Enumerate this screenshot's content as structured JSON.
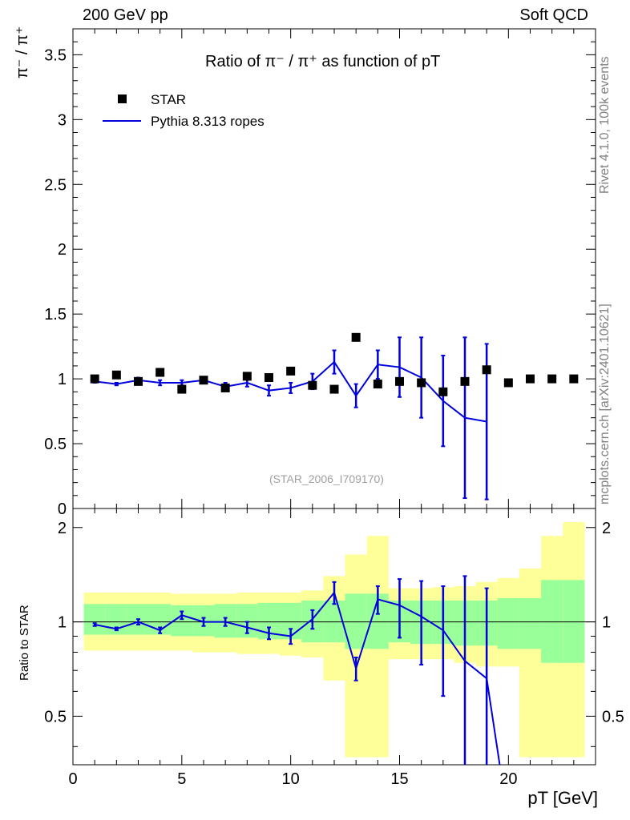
{
  "header": {
    "left": "200 GeV pp",
    "right": "Soft QCD"
  },
  "side_labels": {
    "rivet": "Rivet 4.1.0,  100k events",
    "mcplots": "mcplots.cern.ch [arXiv:2401.10621]"
  },
  "colors": {
    "data": "#000000",
    "mc": "#0000dd",
    "band_inner": "#99ff99",
    "band_outer": "#ffff99"
  },
  "chart_data": [
    {
      "id": "main",
      "type": "scatter",
      "title": "Ratio of π⁻ / π⁺ as function of pT",
      "ylabel": "π⁻ / π⁺",
      "xlabel": "pT [GeV]",
      "xlim": [
        0,
        24
      ],
      "ylim": [
        0,
        3.7
      ],
      "yticks": [
        0,
        0.5,
        1,
        1.5,
        2,
        2.5,
        3,
        3.5
      ],
      "ytick_labels": [
        "0",
        "0.5",
        "1",
        "1.5",
        "2",
        "2.5",
        "3",
        "3.5"
      ],
      "reference_label": "(STAR_2006_I709170)",
      "series": [
        {
          "name": "STAR",
          "kind": "markers",
          "x": [
            1,
            2,
            3,
            4,
            5,
            6,
            7,
            8,
            9,
            10,
            11,
            12,
            13,
            14,
            15,
            16,
            17,
            18,
            19,
            20,
            21,
            22,
            23
          ],
          "y": [
            1.0,
            1.03,
            0.98,
            1.05,
            0.92,
            0.99,
            0.93,
            1.02,
            1.01,
            1.06,
            0.95,
            0.92,
            1.32,
            0.96,
            0.98,
            0.97,
            0.9,
            0.98,
            1.07,
            0.97,
            1.0,
            1.0,
            1.0
          ]
        },
        {
          "name": "Pythia 8.313 ropes",
          "kind": "line",
          "x": [
            1,
            2,
            3,
            4,
            5,
            6,
            7,
            8,
            9,
            10,
            11,
            12,
            13,
            14,
            15,
            16,
            17,
            18,
            19
          ],
          "y": [
            0.98,
            0.96,
            0.99,
            0.97,
            0.97,
            0.99,
            0.94,
            0.97,
            0.91,
            0.93,
            0.98,
            1.13,
            0.87,
            1.11,
            1.09,
            1.01,
            0.83,
            0.7,
            0.67
          ],
          "err": [
            0.01,
            0.01,
            0.02,
            0.02,
            0.02,
            0.02,
            0.03,
            0.03,
            0.04,
            0.04,
            0.06,
            0.09,
            0.09,
            0.11,
            0.23,
            0.31,
            0.35,
            0.62,
            0.6
          ]
        }
      ]
    },
    {
      "id": "ratio",
      "type": "line",
      "ylabel": "Ratio to STAR",
      "xlim": [
        0,
        24
      ],
      "ylim": [
        0.35,
        2.3
      ],
      "xticks": [
        0,
        5,
        10,
        15,
        20
      ],
      "xtick_labels": [
        "0",
        "5",
        "10",
        "15",
        "20"
      ],
      "yticks": [
        0.5,
        1,
        2
      ],
      "ytick_labels": [
        "0.5",
        "1",
        "2"
      ],
      "bands": {
        "edges": [
          0.5,
          1.5,
          2.5,
          3.5,
          4.5,
          5.5,
          6.5,
          7.5,
          8.5,
          9.5,
          10.5,
          11.5,
          12.5,
          13.5,
          14.5,
          15.5,
          16.5,
          17.5,
          18.5,
          19.5,
          20.5,
          21.5,
          22.5,
          23.5
        ],
        "inner_lo": [
          0.91,
          0.91,
          0.91,
          0.91,
          0.9,
          0.9,
          0.89,
          0.89,
          0.88,
          0.88,
          0.86,
          0.86,
          0.82,
          0.82,
          0.86,
          0.85,
          0.85,
          0.84,
          0.84,
          0.82,
          0.82,
          0.74,
          0.74
        ],
        "inner_hi": [
          1.14,
          1.14,
          1.14,
          1.14,
          1.13,
          1.13,
          1.14,
          1.14,
          1.15,
          1.15,
          1.17,
          1.17,
          1.23,
          1.23,
          1.17,
          1.17,
          1.17,
          1.17,
          1.17,
          1.19,
          1.19,
          1.36,
          1.36
        ],
        "outer_lo": [
          0.81,
          0.81,
          0.81,
          0.81,
          0.81,
          0.8,
          0.8,
          0.79,
          0.79,
          0.78,
          0.77,
          0.65,
          0.37,
          0.37,
          0.76,
          0.76,
          0.76,
          0.74,
          0.72,
          0.72,
          0.37,
          0.37,
          0.37
        ],
        "outer_hi": [
          1.24,
          1.24,
          1.24,
          1.24,
          1.23,
          1.23,
          1.23,
          1.24,
          1.24,
          1.24,
          1.26,
          1.4,
          1.64,
          1.88,
          1.28,
          1.28,
          1.29,
          1.3,
          1.34,
          1.38,
          1.48,
          1.88,
          2.08
        ]
      },
      "series": [
        {
          "name": "Pythia 8.313 ropes / STAR",
          "x": [
            1,
            2,
            3,
            4,
            5,
            6,
            7,
            8,
            9,
            10,
            11,
            12,
            13,
            14,
            15,
            16,
            17,
            18,
            19,
            19.6
          ],
          "y": [
            0.98,
            0.95,
            1.0,
            0.94,
            1.05,
            1.0,
            1.0,
            0.96,
            0.92,
            0.9,
            1.02,
            1.24,
            0.71,
            1.18,
            1.13,
            1.04,
            0.94,
            0.75,
            0.66,
            0.35
          ],
          "err": [
            0.01,
            0.01,
            0.02,
            0.02,
            0.03,
            0.03,
            0.03,
            0.04,
            0.04,
            0.05,
            0.07,
            0.1,
            0.06,
            0.12,
            0.24,
            0.31,
            0.36,
            0.65,
            0.62,
            0
          ]
        }
      ]
    }
  ],
  "legend": [
    {
      "label": "STAR"
    },
    {
      "label": "Pythia 8.313 ropes"
    }
  ]
}
